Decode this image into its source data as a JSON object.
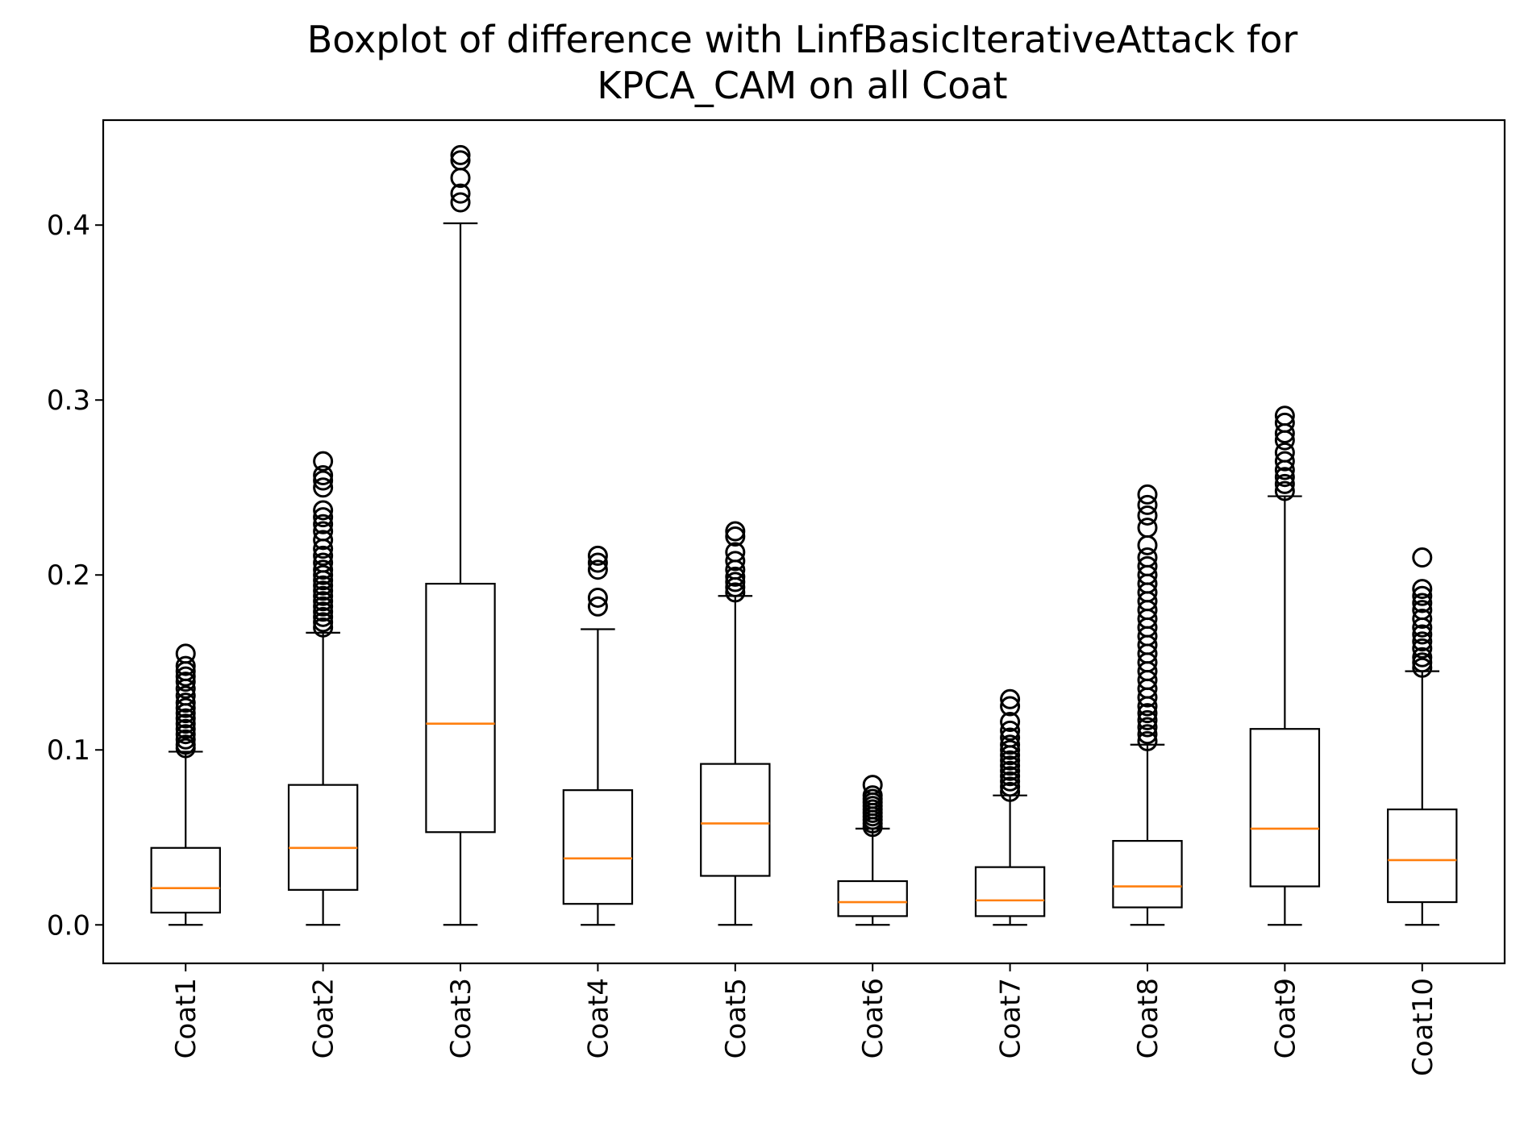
{
  "chart_data": {
    "type": "boxplot",
    "title": "Boxplot of difference with LinfBasicIterativeAttack for KPCA_CAM on all Coat",
    "title_lines": [
      "Boxplot of difference with LinfBasicIterativeAttack for",
      "KPCA_CAM on all Coat"
    ],
    "xlabel": "",
    "ylabel": "",
    "ylim": [
      -0.022,
      0.46
    ],
    "yticks": [
      0.0,
      0.1,
      0.2,
      0.3,
      0.4
    ],
    "ytick_labels": [
      "0.0",
      "0.1",
      "0.2",
      "0.3",
      "0.4"
    ],
    "xtick_rotation": "vertical",
    "grid": false,
    "colors": {
      "box": "#000000",
      "median": "#ff7f0e",
      "flier": "#000000"
    },
    "categories": [
      "Coat1",
      "Coat2",
      "Coat3",
      "Coat4",
      "Coat5",
      "Coat6",
      "Coat7",
      "Coat8",
      "Coat9",
      "Coat10"
    ],
    "boxes": [
      {
        "label": "Coat1",
        "whisker_low": 0.0,
        "q1": 0.007,
        "median": 0.021,
        "q3": 0.044,
        "whisker_high": 0.099,
        "fliers": [
          0.101,
          0.103,
          0.106,
          0.109,
          0.112,
          0.115,
          0.118,
          0.121,
          0.124,
          0.127,
          0.131,
          0.135,
          0.139,
          0.142,
          0.145,
          0.148,
          0.155
        ]
      },
      {
        "label": "Coat2",
        "whisker_low": 0.0,
        "q1": 0.02,
        "median": 0.044,
        "q3": 0.08,
        "whisker_high": 0.167,
        "fliers": [
          0.17,
          0.173,
          0.176,
          0.179,
          0.182,
          0.185,
          0.188,
          0.191,
          0.194,
          0.197,
          0.2,
          0.203,
          0.207,
          0.211,
          0.215,
          0.22,
          0.225,
          0.229,
          0.233,
          0.237,
          0.25,
          0.254,
          0.257,
          0.265
        ]
      },
      {
        "label": "Coat3",
        "whisker_low": 0.0,
        "q1": 0.053,
        "median": 0.115,
        "q3": 0.195,
        "whisker_high": 0.401,
        "fliers": [
          0.413,
          0.418,
          0.427,
          0.437,
          0.44
        ]
      },
      {
        "label": "Coat4",
        "whisker_low": 0.0,
        "q1": 0.012,
        "median": 0.038,
        "q3": 0.077,
        "whisker_high": 0.169,
        "fliers": [
          0.182,
          0.187,
          0.203,
          0.207,
          0.211
        ]
      },
      {
        "label": "Coat5",
        "whisker_low": 0.0,
        "q1": 0.028,
        "median": 0.058,
        "q3": 0.092,
        "whisker_high": 0.188,
        "fliers": [
          0.19,
          0.193,
          0.196,
          0.199,
          0.203,
          0.208,
          0.213,
          0.222,
          0.225
        ]
      },
      {
        "label": "Coat6",
        "whisker_low": 0.0,
        "q1": 0.005,
        "median": 0.013,
        "q3": 0.025,
        "whisker_high": 0.055,
        "fliers": [
          0.056,
          0.058,
          0.06,
          0.062,
          0.064,
          0.066,
          0.068,
          0.07,
          0.072,
          0.074,
          0.08
        ]
      },
      {
        "label": "Coat7",
        "whisker_low": 0.0,
        "q1": 0.005,
        "median": 0.014,
        "q3": 0.033,
        "whisker_high": 0.074,
        "fliers": [
          0.076,
          0.079,
          0.082,
          0.085,
          0.088,
          0.091,
          0.094,
          0.097,
          0.1,
          0.103,
          0.107,
          0.111,
          0.116,
          0.125,
          0.129
        ]
      },
      {
        "label": "Coat8",
        "whisker_low": 0.0,
        "q1": 0.01,
        "median": 0.022,
        "q3": 0.048,
        "whisker_high": 0.103,
        "fliers": [
          0.105,
          0.109,
          0.113,
          0.117,
          0.121,
          0.125,
          0.13,
          0.135,
          0.14,
          0.145,
          0.15,
          0.155,
          0.16,
          0.165,
          0.17,
          0.175,
          0.18,
          0.185,
          0.19,
          0.195,
          0.2,
          0.205,
          0.21,
          0.217,
          0.227,
          0.234,
          0.24,
          0.246
        ]
      },
      {
        "label": "Coat9",
        "whisker_low": 0.0,
        "q1": 0.022,
        "median": 0.055,
        "q3": 0.112,
        "whisker_high": 0.245,
        "fliers": [
          0.248,
          0.252,
          0.256,
          0.26,
          0.265,
          0.27,
          0.277,
          0.281,
          0.287,
          0.291
        ]
      },
      {
        "label": "Coat10",
        "whisker_low": 0.0,
        "q1": 0.013,
        "median": 0.037,
        "q3": 0.066,
        "whisker_high": 0.145,
        "fliers": [
          0.147,
          0.15,
          0.153,
          0.158,
          0.162,
          0.166,
          0.17,
          0.175,
          0.18,
          0.184,
          0.188,
          0.192,
          0.21
        ]
      }
    ]
  }
}
